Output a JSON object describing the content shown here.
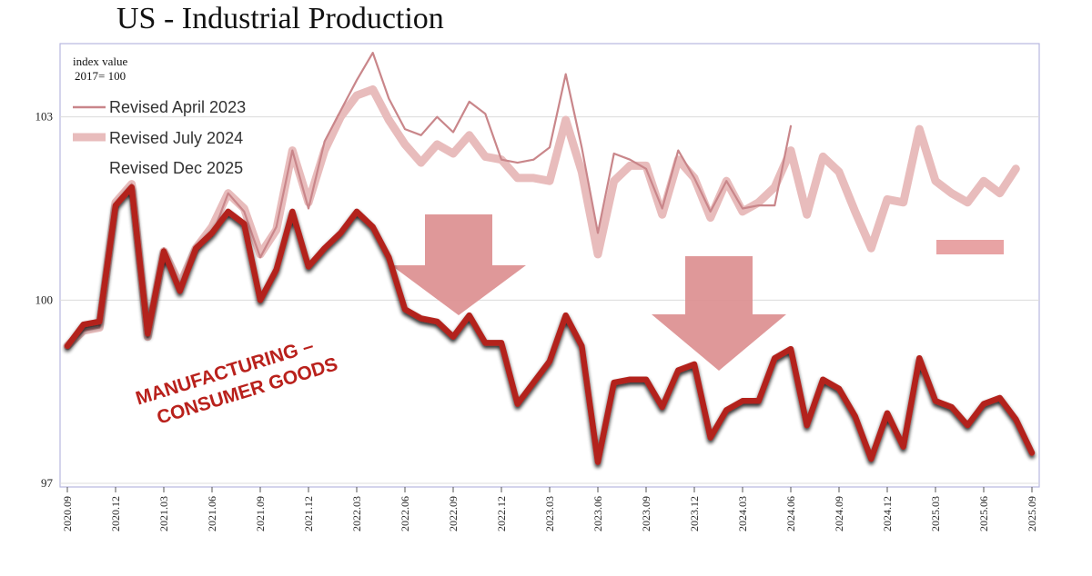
{
  "title": "US - Industrial Production",
  "chart_data": {
    "type": "line",
    "unit_label_line1": "index value",
    "unit_label_line2": "2017= 100",
    "ylim": [
      97,
      104.2
    ],
    "y_ticks": [
      97,
      100,
      103
    ],
    "x_ticks": [
      "2020.09",
      "2020.12",
      "2021.03",
      "2021.06",
      "2021.09",
      "2021.12",
      "2022.03",
      "2022.06",
      "2022.09",
      "2022.12",
      "2023.03",
      "2023.06",
      "2023.09",
      "2023.12",
      "2024.03",
      "2024.06",
      "2024.09",
      "2024.12",
      "2025.03",
      "2025.06",
      "2025.09"
    ],
    "grid": "horizontal",
    "legend_position": "top-left",
    "annotation_line1": "MANUFACTURING –",
    "annotation_line2": "CONSUMER GOODS",
    "colors": {
      "revised_april_2023": "#c9868a",
      "revised_july_2024": "#e8bcbc",
      "revised_dec_2025": "#b3221d",
      "arrow": "#dc8f90"
    },
    "series": [
      {
        "name": "Revised April 2023",
        "x": [
          "2020.09",
          "2020.10",
          "2020.11",
          "2020.12",
          "2021.01",
          "2021.02",
          "2021.03",
          "2021.04",
          "2021.05",
          "2021.06",
          "2021.07",
          "2021.08",
          "2021.09",
          "2021.10",
          "2021.11",
          "2021.12",
          "2022.01",
          "2022.02",
          "2022.03",
          "2022.04",
          "2022.05",
          "2022.06",
          "2022.07",
          "2022.08",
          "2022.09",
          "2022.10",
          "2022.11",
          "2022.12",
          "2023.01",
          "2023.02",
          "2023.03",
          "2023.04",
          "2023.05",
          "2023.06",
          "2023.07",
          "2023.08",
          "2023.09",
          "2023.10",
          "2023.11",
          "2023.12",
          "2024.01",
          "2024.02",
          "2024.03",
          "2024.04",
          "2024.05",
          "2024.06"
        ],
        "values": [
          99.25,
          99.5,
          99.55,
          101.6,
          101.9,
          99.4,
          100.85,
          100.2,
          100.9,
          101.05,
          101.75,
          101.45,
          100.7,
          101.2,
          102.45,
          101.5,
          102.6,
          103.1,
          103.6,
          104.05,
          103.3,
          102.8,
          102.7,
          103.0,
          102.75,
          103.25,
          103.05,
          102.3,
          102.25,
          102.3,
          102.5,
          103.7,
          102.5,
          101.1,
          102.4,
          102.3,
          102.15,
          101.5,
          102.45,
          102.0,
          101.45,
          101.95,
          101.5,
          101.55,
          101.55,
          102.85
        ]
      },
      {
        "name": "Revised July 2024",
        "x": [
          "2020.09",
          "2020.10",
          "2020.11",
          "2020.12",
          "2021.01",
          "2021.02",
          "2021.03",
          "2021.04",
          "2021.05",
          "2021.06",
          "2021.07",
          "2021.08",
          "2021.09",
          "2021.10",
          "2021.11",
          "2021.12",
          "2022.01",
          "2022.02",
          "2022.03",
          "2022.04",
          "2022.05",
          "2022.06",
          "2022.07",
          "2022.08",
          "2022.09",
          "2022.10",
          "2022.11",
          "2022.12",
          "2023.01",
          "2023.02",
          "2023.03",
          "2023.04",
          "2023.05",
          "2023.06",
          "2023.07",
          "2023.08",
          "2023.09",
          "2023.10",
          "2023.11",
          "2023.12",
          "2024.01",
          "2024.02",
          "2024.03",
          "2024.04",
          "2024.05",
          "2024.06",
          "2024.07",
          "2024.08",
          "2024.09",
          "2024.10",
          "2024.11",
          "2024.12",
          "2025.01",
          "2025.02",
          "2025.03",
          "2025.04",
          "2025.05",
          "2025.06",
          "2025.07",
          "2025.08"
        ],
        "values": [
          99.25,
          99.5,
          99.55,
          101.6,
          101.9,
          99.4,
          100.8,
          100.25,
          100.85,
          101.2,
          101.75,
          101.5,
          100.75,
          101.15,
          102.45,
          101.6,
          102.45,
          103.0,
          103.35,
          103.45,
          102.95,
          102.55,
          102.25,
          102.55,
          102.4,
          102.7,
          102.35,
          102.3,
          102.0,
          102.0,
          101.95,
          102.95,
          102.1,
          100.75,
          101.95,
          102.2,
          102.2,
          101.4,
          102.3,
          102.0,
          101.35,
          101.95,
          101.45,
          101.6,
          101.85,
          102.45,
          101.4,
          102.35,
          102.1,
          101.45,
          100.85,
          101.65,
          101.6,
          102.8,
          101.95,
          101.75,
          101.6,
          101.95,
          101.75,
          102.15
        ]
      },
      {
        "name": "Revised Dec 2025",
        "x": [
          "2020.09",
          "2020.10",
          "2020.11",
          "2020.12",
          "2021.01",
          "2021.02",
          "2021.03",
          "2021.04",
          "2021.05",
          "2021.06",
          "2021.07",
          "2021.08",
          "2021.09",
          "2021.10",
          "2021.11",
          "2021.12",
          "2022.01",
          "2022.02",
          "2022.03",
          "2022.04",
          "2022.05",
          "2022.06",
          "2022.07",
          "2022.08",
          "2022.09",
          "2022.10",
          "2022.11",
          "2022.12",
          "2023.01",
          "2023.02",
          "2023.03",
          "2023.04",
          "2023.05",
          "2023.06",
          "2023.07",
          "2023.08",
          "2023.09",
          "2023.10",
          "2023.11",
          "2023.12",
          "2024.01",
          "2024.02",
          "2024.03",
          "2024.04",
          "2024.05",
          "2024.06",
          "2024.07",
          "2024.08",
          "2024.09",
          "2024.10",
          "2024.11",
          "2024.12",
          "2025.01",
          "2025.02",
          "2025.03",
          "2025.04",
          "2025.05",
          "2025.06",
          "2025.07",
          "2025.08",
          "2025.09"
        ],
        "values": [
          99.25,
          99.6,
          99.65,
          101.55,
          101.85,
          99.45,
          100.8,
          100.15,
          100.85,
          101.1,
          101.45,
          101.25,
          100.0,
          100.5,
          101.45,
          100.55,
          100.85,
          101.1,
          101.45,
          101.2,
          100.7,
          99.85,
          99.7,
          99.65,
          99.4,
          99.75,
          99.3,
          99.3,
          98.3,
          98.65,
          99.0,
          99.75,
          99.25,
          97.35,
          98.65,
          98.7,
          98.7,
          98.25,
          98.85,
          98.95,
          97.75,
          98.2,
          98.35,
          98.35,
          99.05,
          99.2,
          97.95,
          98.7,
          98.55,
          98.1,
          97.4,
          98.15,
          97.6,
          99.05,
          98.35,
          98.25,
          97.95,
          98.3,
          98.4,
          98.05,
          97.5
        ]
      }
    ]
  }
}
